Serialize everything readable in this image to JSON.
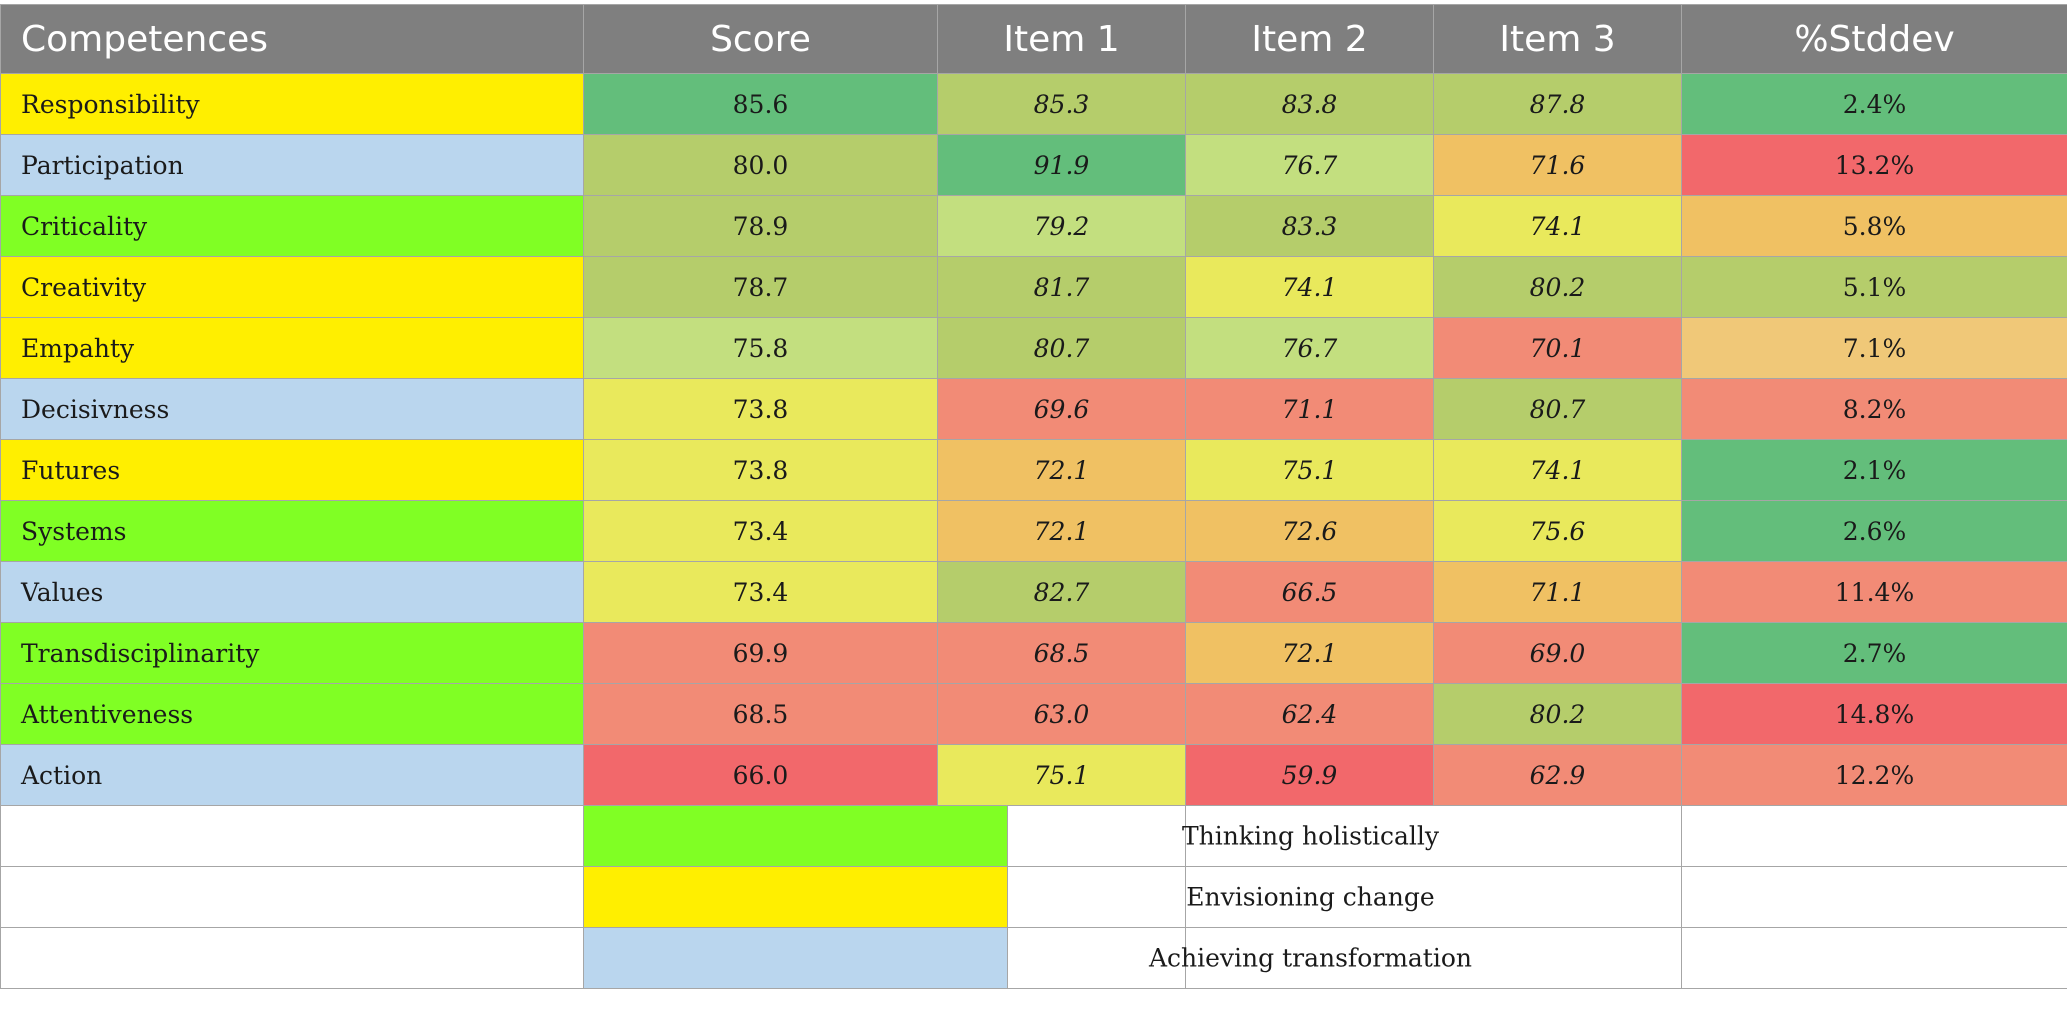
{
  "chart_data": {
    "type": "table",
    "columns": [
      "Competences",
      "Score",
      "Item 1",
      "Item 2",
      "Item 3",
      "%Stddev"
    ],
    "rows": [
      {
        "competence": "Responsibility",
        "group": "Envisioning change",
        "score": "85.6",
        "item1": "85.3",
        "item2": "83.8",
        "item3": "87.8",
        "stddev": "2.4%"
      },
      {
        "competence": "Participation",
        "group": "Achieving transformation",
        "score": "80.0",
        "item1": "91.9",
        "item2": "76.7",
        "item3": "71.6",
        "stddev": "13.2%"
      },
      {
        "competence": "Criticality",
        "group": "Thinking holistically",
        "score": "78.9",
        "item1": "79.2",
        "item2": "83.3",
        "item3": "74.1",
        "stddev": "5.8%"
      },
      {
        "competence": "Creativity",
        "group": "Envisioning change",
        "score": "78.7",
        "item1": "81.7",
        "item2": "74.1",
        "item3": "80.2",
        "stddev": "5.1%"
      },
      {
        "competence": "Empahty",
        "group": "Envisioning change",
        "score": "75.8",
        "item1": "80.7",
        "item2": "76.7",
        "item3": "70.1",
        "stddev": "7.1%"
      },
      {
        "competence": "Decisivness",
        "group": "Achieving transformation",
        "score": "73.8",
        "item1": "69.6",
        "item2": "71.1",
        "item3": "80.7",
        "stddev": "8.2%"
      },
      {
        "competence": "Futures",
        "group": "Envisioning change",
        "score": "73.8",
        "item1": "72.1",
        "item2": "75.1",
        "item3": "74.1",
        "stddev": "2.1%"
      },
      {
        "competence": "Systems",
        "group": "Thinking holistically",
        "score": "73.4",
        "item1": "72.1",
        "item2": "72.6",
        "item3": "75.6",
        "stddev": "2.6%"
      },
      {
        "competence": "Values",
        "group": "Achieving transformation",
        "score": "73.4",
        "item1": "82.7",
        "item2": "66.5",
        "item3": "71.1",
        "stddev": "11.4%"
      },
      {
        "competence": "Transdisciplinarity",
        "group": "Thinking holistically",
        "score": "69.9",
        "item1": "68.5",
        "item2": "72.1",
        "item3": "69.0",
        "stddev": "2.7%"
      },
      {
        "competence": "Attentiveness",
        "group": "Thinking holistically",
        "score": "68.5",
        "item1": "63.0",
        "item2": "62.4",
        "item3": "80.2",
        "stddev": "14.8%"
      },
      {
        "competence": "Action",
        "group": "Achieving transformation",
        "score": "66.0",
        "item1": "75.1",
        "item2": "59.9",
        "item3": "62.9",
        "stddev": "12.2%"
      }
    ],
    "cell_colors": [
      [
        "#63be7b",
        "#b5cd6b",
        "#b5cd6b",
        "#b5cd6b",
        "#63be7b"
      ],
      [
        "#b5cd6b",
        "#63be7b",
        "#c3df7f",
        "#f0c163",
        "#f2686b"
      ],
      [
        "#b5cd6b",
        "#c3df7f",
        "#b5cd6b",
        "#e9e95c",
        "#f0c163"
      ],
      [
        "#b5cd6b",
        "#b5cd6b",
        "#e9e95c",
        "#b5cd6b",
        "#b5cd6b"
      ],
      [
        "#c3df7f",
        "#b5cd6b",
        "#c3df7f",
        "#f28b76",
        "#f0c878"
      ],
      [
        "#e9e95c",
        "#f28b76",
        "#f28b76",
        "#b5cd6b",
        "#f28b76"
      ],
      [
        "#e9e95c",
        "#f0c163",
        "#e9e95c",
        "#e9e95c",
        "#63be7b"
      ],
      [
        "#e9e95c",
        "#f0c163",
        "#f0c163",
        "#e9e95c",
        "#63be7b"
      ],
      [
        "#e9e95c",
        "#b5cd6b",
        "#f28b76",
        "#f0c163",
        "#f28b76"
      ],
      [
        "#f28b76",
        "#f28b76",
        "#f0c163",
        "#f28b76",
        "#63be7b"
      ],
      [
        "#f28b76",
        "#f28b76",
        "#f28b76",
        "#b5cd6b",
        "#f2686b"
      ],
      [
        "#f2686b",
        "#e9e95c",
        "#f2686b",
        "#f28b76",
        "#f28b76"
      ]
    ],
    "legend": [
      {
        "label": "Thinking holistically",
        "color": "#80ff24"
      },
      {
        "label": "Envisioning change",
        "color": "#ffef00"
      },
      {
        "label": "Achieving transformation",
        "color": "#bad6ee"
      }
    ]
  }
}
